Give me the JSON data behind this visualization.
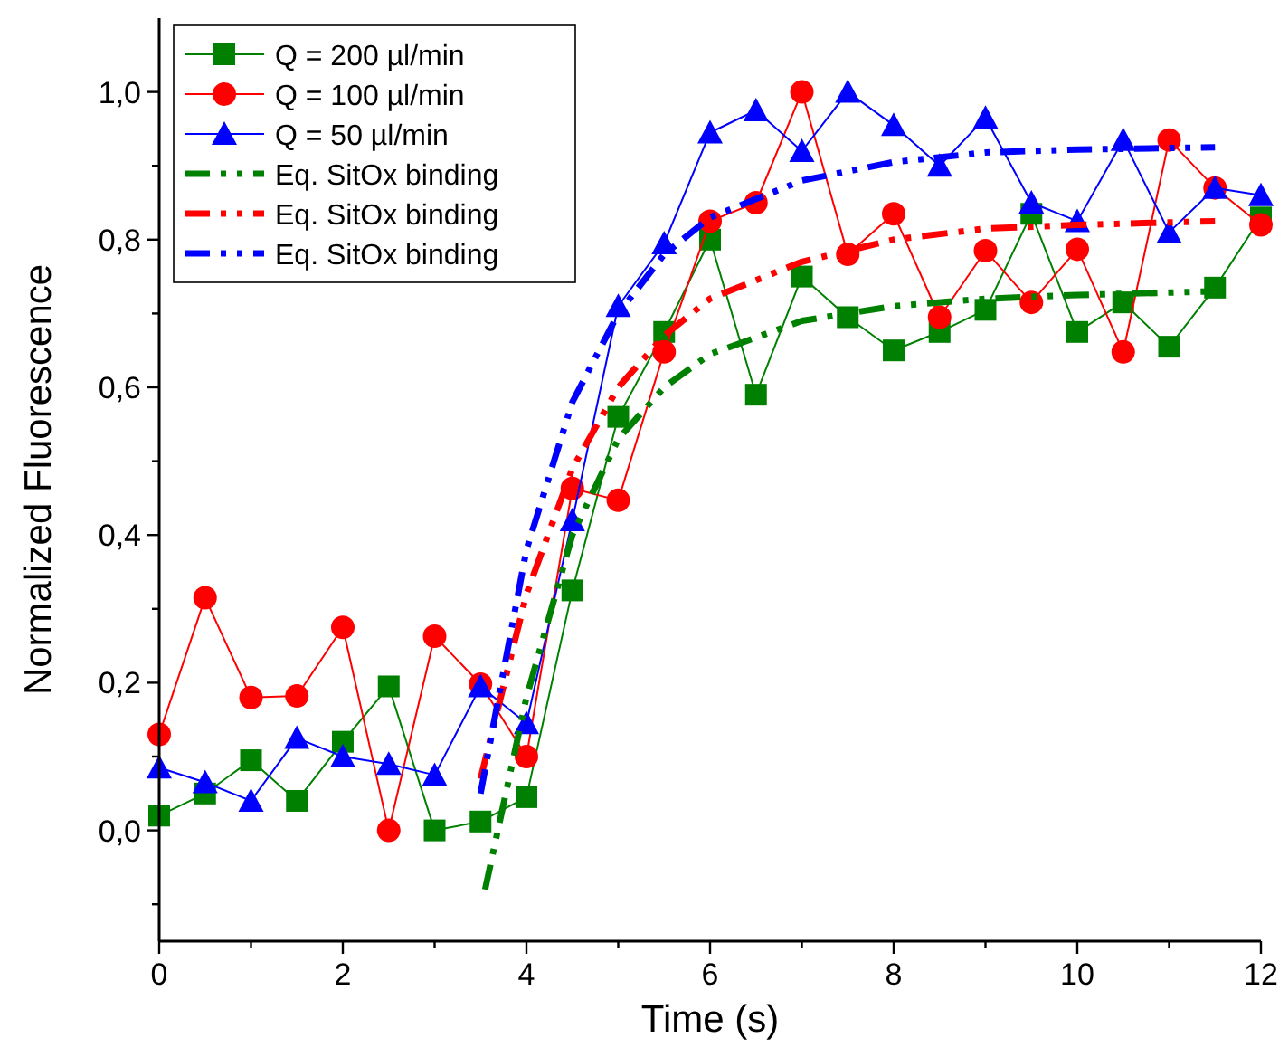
{
  "chart_data": {
    "type": "line",
    "xlabel": "Time (s)",
    "ylabel": "Normalized Fluorescence",
    "xlim": [
      0,
      12
    ],
    "ylim": [
      -0.15,
      1.1
    ],
    "xticks": [
      0,
      {
        "value": 1,
        "label": null
      },
      2,
      {
        "value": 3,
        "label": null
      },
      4,
      {
        "value": 5,
        "label": null
      },
      6,
      {
        "value": 7,
        "label": null
      },
      8,
      {
        "value": 9,
        "label": null
      },
      10,
      {
        "value": 11,
        "label": null
      },
      12
    ],
    "yticks": [
      {
        "value": -0.1,
        "label": null
      },
      {
        "value": 0,
        "label": "0,0"
      },
      {
        "value": 0.1,
        "label": null
      },
      {
        "value": 0.2,
        "label": "0,2"
      },
      {
        "value": 0.3,
        "label": null
      },
      {
        "value": 0.4,
        "label": "0,4"
      },
      {
        "value": 0.5,
        "label": null
      },
      {
        "value": 0.6,
        "label": "0,6"
      },
      {
        "value": 0.7,
        "label": null
      },
      {
        "value": 0.8,
        "label": "0,8"
      },
      {
        "value": 0.9,
        "label": null
      },
      {
        "value": 1,
        "label": "1,0"
      }
    ],
    "legend": "top left",
    "grid": false,
    "x": [
      0,
      0.5,
      1,
      1.5,
      2,
      2.5,
      3,
      3.5,
      4,
      4.5,
      5,
      5.5,
      6,
      6.5,
      7,
      7.5,
      8,
      8.5,
      9,
      9.5,
      10,
      10.5,
      11,
      11.5,
      12
    ],
    "series": [
      {
        "name": "Q = 200 µl/min",
        "color": "#008000",
        "marker": "square",
        "line_style": "solid",
        "values": [
          0.02,
          0.05,
          0.095,
          0.04,
          0.12,
          0.195,
          0.0,
          0.012,
          0.045,
          0.325,
          0.56,
          0.675,
          0.8,
          0.59,
          0.75,
          0.695,
          0.65,
          0.675,
          0.705,
          0.835,
          0.675,
          0.715,
          0.655,
          0.735,
          0.83
        ]
      },
      {
        "name": "Q = 100 µl/min",
        "color": "#ff0000",
        "marker": "circle",
        "line_style": "solid",
        "values": [
          0.13,
          0.315,
          0.18,
          0.182,
          0.275,
          0.0,
          0.263,
          0.198,
          0.1,
          0.463,
          0.447,
          0.648,
          0.825,
          0.85,
          1.0,
          0.78,
          0.835,
          0.695,
          0.785,
          0.715,
          0.787,
          0.648,
          0.935,
          0.87,
          0.82
        ]
      },
      {
        "name": "Q = 50 µl/min",
        "color": "#0000ff",
        "marker": "triangle",
        "line_style": "solid",
        "values": [
          0.085,
          0.065,
          0.04,
          0.125,
          0.1,
          0.09,
          0.075,
          0.195,
          0.145,
          0.42,
          0.71,
          0.795,
          0.945,
          0.975,
          0.92,
          1.0,
          0.955,
          0.9,
          0.965,
          0.85,
          0.825,
          0.935,
          0.81,
          0.87,
          0.86
        ]
      },
      {
        "name": "Eq. SitOx binding",
        "color": "#008000",
        "marker": "none",
        "line_style": "dashed",
        "x": [
          3.55,
          4,
          4.5,
          5,
          5.5,
          6,
          7,
          8,
          9,
          10,
          11.5
        ],
        "values": [
          -0.08,
          0.18,
          0.4,
          0.53,
          0.6,
          0.645,
          0.69,
          0.71,
          0.72,
          0.725,
          0.73
        ]
      },
      {
        "name": "Eq. SitOx binding",
        "color": "#ff0000",
        "marker": "none",
        "line_style": "dashed",
        "x": [
          3.5,
          4,
          4.5,
          5,
          5.5,
          6,
          7,
          8,
          9,
          10,
          11.5
        ],
        "values": [
          0.07,
          0.32,
          0.49,
          0.6,
          0.67,
          0.72,
          0.77,
          0.8,
          0.815,
          0.82,
          0.825
        ]
      },
      {
        "name": "Eq. SitOx binding",
        "color": "#0000ff",
        "marker": "none",
        "line_style": "dashed",
        "x": [
          3.5,
          4,
          4.5,
          5,
          5.5,
          6,
          7,
          8,
          9,
          10,
          11.5
        ],
        "values": [
          0.05,
          0.38,
          0.58,
          0.7,
          0.78,
          0.83,
          0.88,
          0.905,
          0.918,
          0.922,
          0.925
        ]
      }
    ]
  }
}
